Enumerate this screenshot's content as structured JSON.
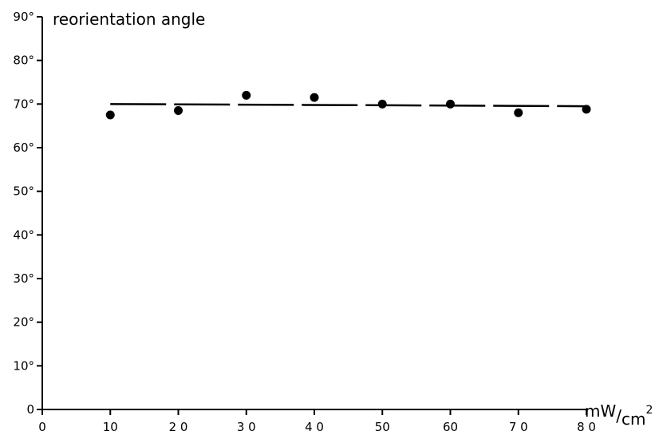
{
  "chart_data": {
    "type": "scatter",
    "title": "",
    "ylabel": "reorientation angle",
    "xlabel": {
      "main": "mW",
      "slash": "/",
      "unit": "cm",
      "exponent": "2"
    },
    "xlim": [
      0,
      80
    ],
    "ylim": [
      0,
      90
    ],
    "xticks": [
      0,
      10,
      20,
      30,
      40,
      50,
      60,
      70,
      80
    ],
    "xtick_labels": [
      "0",
      "10",
      "2 0",
      "3 0",
      "4 0",
      "50",
      "60",
      "7 0",
      "8 0"
    ],
    "yticks": [
      0,
      10,
      20,
      30,
      40,
      50,
      60,
      70,
      80,
      90
    ],
    "ytick_labels": [
      "0",
      "10°",
      "20°",
      "30°",
      "40°",
      "50°",
      "60°",
      "70°",
      "80°",
      "90°"
    ],
    "grid": false,
    "points": {
      "x": [
        10,
        20,
        30,
        40,
        50,
        60,
        70,
        80
      ],
      "y": [
        67.5,
        68.5,
        72,
        71.5,
        70,
        70,
        68,
        68.8
      ]
    },
    "reference_line": {
      "style": "dashed",
      "x": [
        10,
        80
      ],
      "y": [
        70,
        69.5
      ]
    }
  }
}
